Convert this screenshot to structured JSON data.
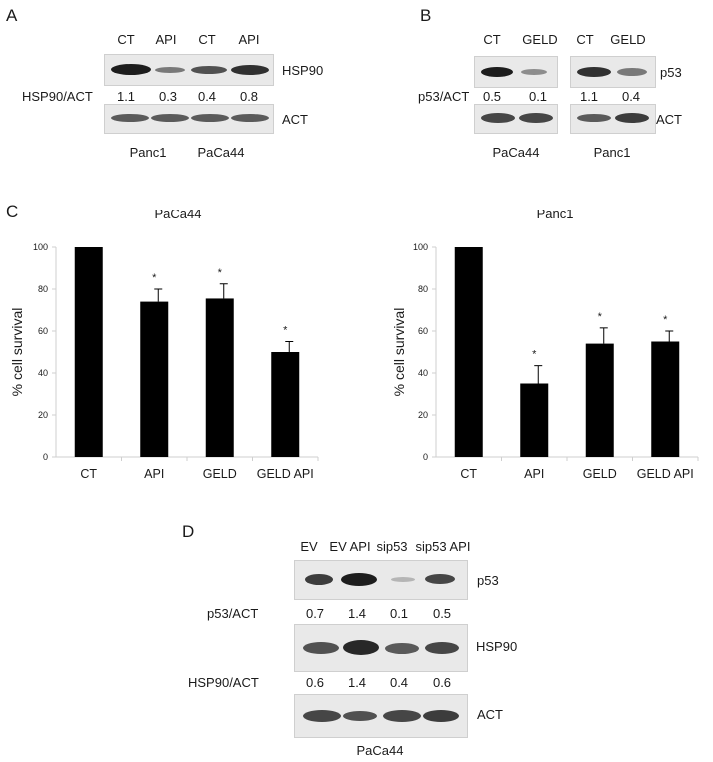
{
  "panelA": {
    "letter": "A",
    "lanes": [
      "CT",
      "API",
      "CT",
      "API"
    ],
    "protein_top": "HSP90",
    "ratio_label": "HSP90/ACT",
    "ratios": [
      "1.1",
      "0.3",
      "0.4",
      "0.8"
    ],
    "protein_bottom": "ACT",
    "cell_lines": [
      "Panc1",
      "PaCa44"
    ]
  },
  "panelB": {
    "letter": "B",
    "lanes": [
      "CT",
      "GELD",
      "CT",
      "GELD"
    ],
    "protein_top": "p53",
    "ratio_label": "p53/ACT",
    "ratios": [
      "0.5",
      "0.1",
      "1.1",
      "0.4"
    ],
    "protein_bottom": "ACT",
    "cell_lines": [
      "PaCa44",
      "Panc1"
    ]
  },
  "panelC": {
    "letter": "C"
  },
  "panelD": {
    "letter": "D",
    "lanes": [
      "EV",
      "EV API",
      "sip53",
      "sip53 API"
    ],
    "protein1": "p53",
    "ratio1_label": "p53/ACT",
    "ratios1": [
      "0.7",
      "1.4",
      "0.1",
      "0.5"
    ],
    "protein2": "HSP90",
    "ratio2_label": "HSP90/ACT",
    "ratios2": [
      "0.6",
      "1.4",
      "0.4",
      "0.6"
    ],
    "protein3": "ACT",
    "cell_line": "PaCa44"
  },
  "chart_data": [
    {
      "type": "bar",
      "title": "PaCa44",
      "ylabel": "% cell survival",
      "xlabel": "",
      "categories": [
        "CT",
        "API",
        "GELD",
        "GELD API"
      ],
      "values": [
        100,
        74,
        75.5,
        50
      ],
      "errors": [
        0,
        6,
        7,
        5
      ],
      "significance": [
        "",
        "*",
        "*",
        "*"
      ],
      "ylim": [
        0,
        100
      ],
      "yticks": [
        0,
        20,
        40,
        60,
        80,
        100
      ],
      "color": "#000000"
    },
    {
      "type": "bar",
      "title": "Panc1",
      "ylabel": "% cell survival",
      "xlabel": "",
      "categories": [
        "CT",
        "API",
        "GELD",
        "GELD API"
      ],
      "values": [
        100,
        35,
        54,
        55
      ],
      "errors": [
        0,
        8.5,
        7.5,
        5
      ],
      "significance": [
        "",
        "*",
        "*",
        "*"
      ],
      "ylim": [
        0,
        100
      ],
      "yticks": [
        0,
        20,
        40,
        60,
        80,
        100
      ],
      "color": "#000000"
    }
  ]
}
